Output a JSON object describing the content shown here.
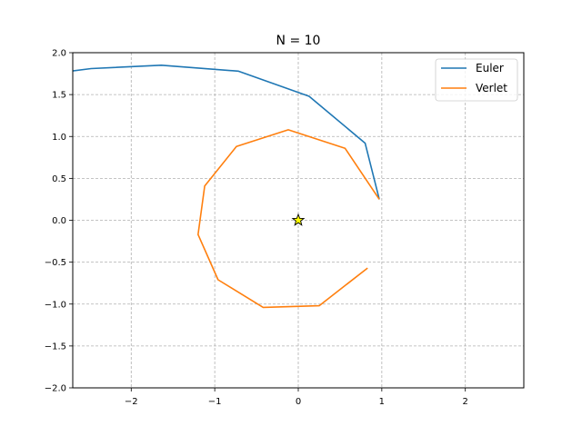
{
  "chart_data": {
    "type": "line",
    "title": "N = 10",
    "xlabel": "",
    "ylabel": "",
    "xlim": [
      -2.7,
      2.7
    ],
    "ylim": [
      -2.0,
      2.0
    ],
    "x_ticks": [
      -2,
      -1,
      0,
      1,
      2
    ],
    "y_ticks": [
      -2.0,
      -1.5,
      -1.0,
      -0.5,
      0.0,
      0.5,
      1.0,
      1.5,
      2.0
    ],
    "x_tick_labels": [
      "−2",
      "−1",
      "0",
      "1",
      "2"
    ],
    "y_tick_labels": [
      "−2.0",
      "−1.5",
      "−1.0",
      "−0.5",
      "0.0",
      "0.5",
      "1.0",
      "1.5",
      "2.0"
    ],
    "grid": true,
    "legend_position": "top-right",
    "series": [
      {
        "name": "Euler",
        "color": "#1f77b4",
        "x": [
          0.97,
          0.8,
          0.13,
          -0.72,
          -1.64,
          -2.48,
          -2.8
        ],
        "y": [
          0.25,
          0.92,
          1.48,
          1.78,
          1.85,
          1.81,
          1.77
        ]
      },
      {
        "name": "Verlet",
        "color": "#ff7f0e",
        "x": [
          0.97,
          0.56,
          -0.12,
          -0.74,
          -1.12,
          -1.2,
          -0.96,
          -0.42,
          0.25,
          0.83
        ],
        "y": [
          0.25,
          0.86,
          1.08,
          0.88,
          0.41,
          -0.17,
          -0.71,
          -1.04,
          -1.02,
          -0.57
        ]
      }
    ],
    "annotations": [
      {
        "type": "star-marker",
        "x": 0,
        "y": 0,
        "color": "#ffff00"
      }
    ]
  }
}
